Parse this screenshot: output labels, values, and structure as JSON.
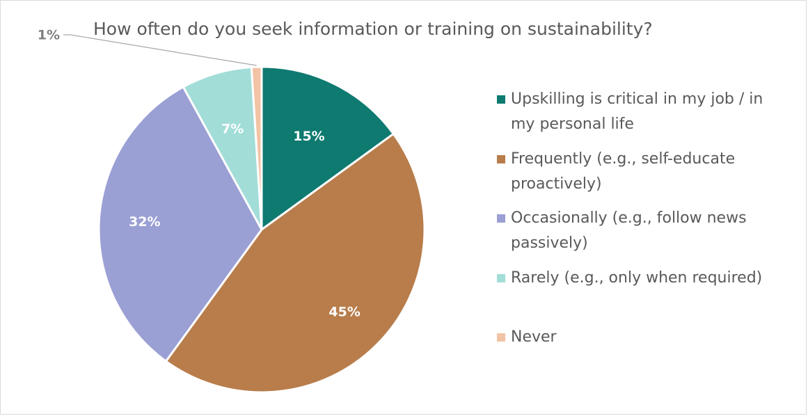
{
  "chart_data": {
    "type": "pie",
    "title": "How often do you seek information or training on sustainability?",
    "categories": [
      "Upskilling is critical in my job / in my personal life",
      "Frequently (e.g., self-educate proactively)",
      "Occasionally (e.g., follow news passively)",
      "Rarely (e.g., only when required)",
      "Never"
    ],
    "values": [
      15,
      45,
      32,
      7,
      1
    ],
    "data_labels": [
      "15%",
      "45%",
      "32%",
      "7%",
      "1%"
    ],
    "colors": [
      "#0e7a70",
      "#b87d4b",
      "#9a9fd4",
      "#a2ddd8",
      "#f2c3a4"
    ],
    "legend_position": "right"
  }
}
